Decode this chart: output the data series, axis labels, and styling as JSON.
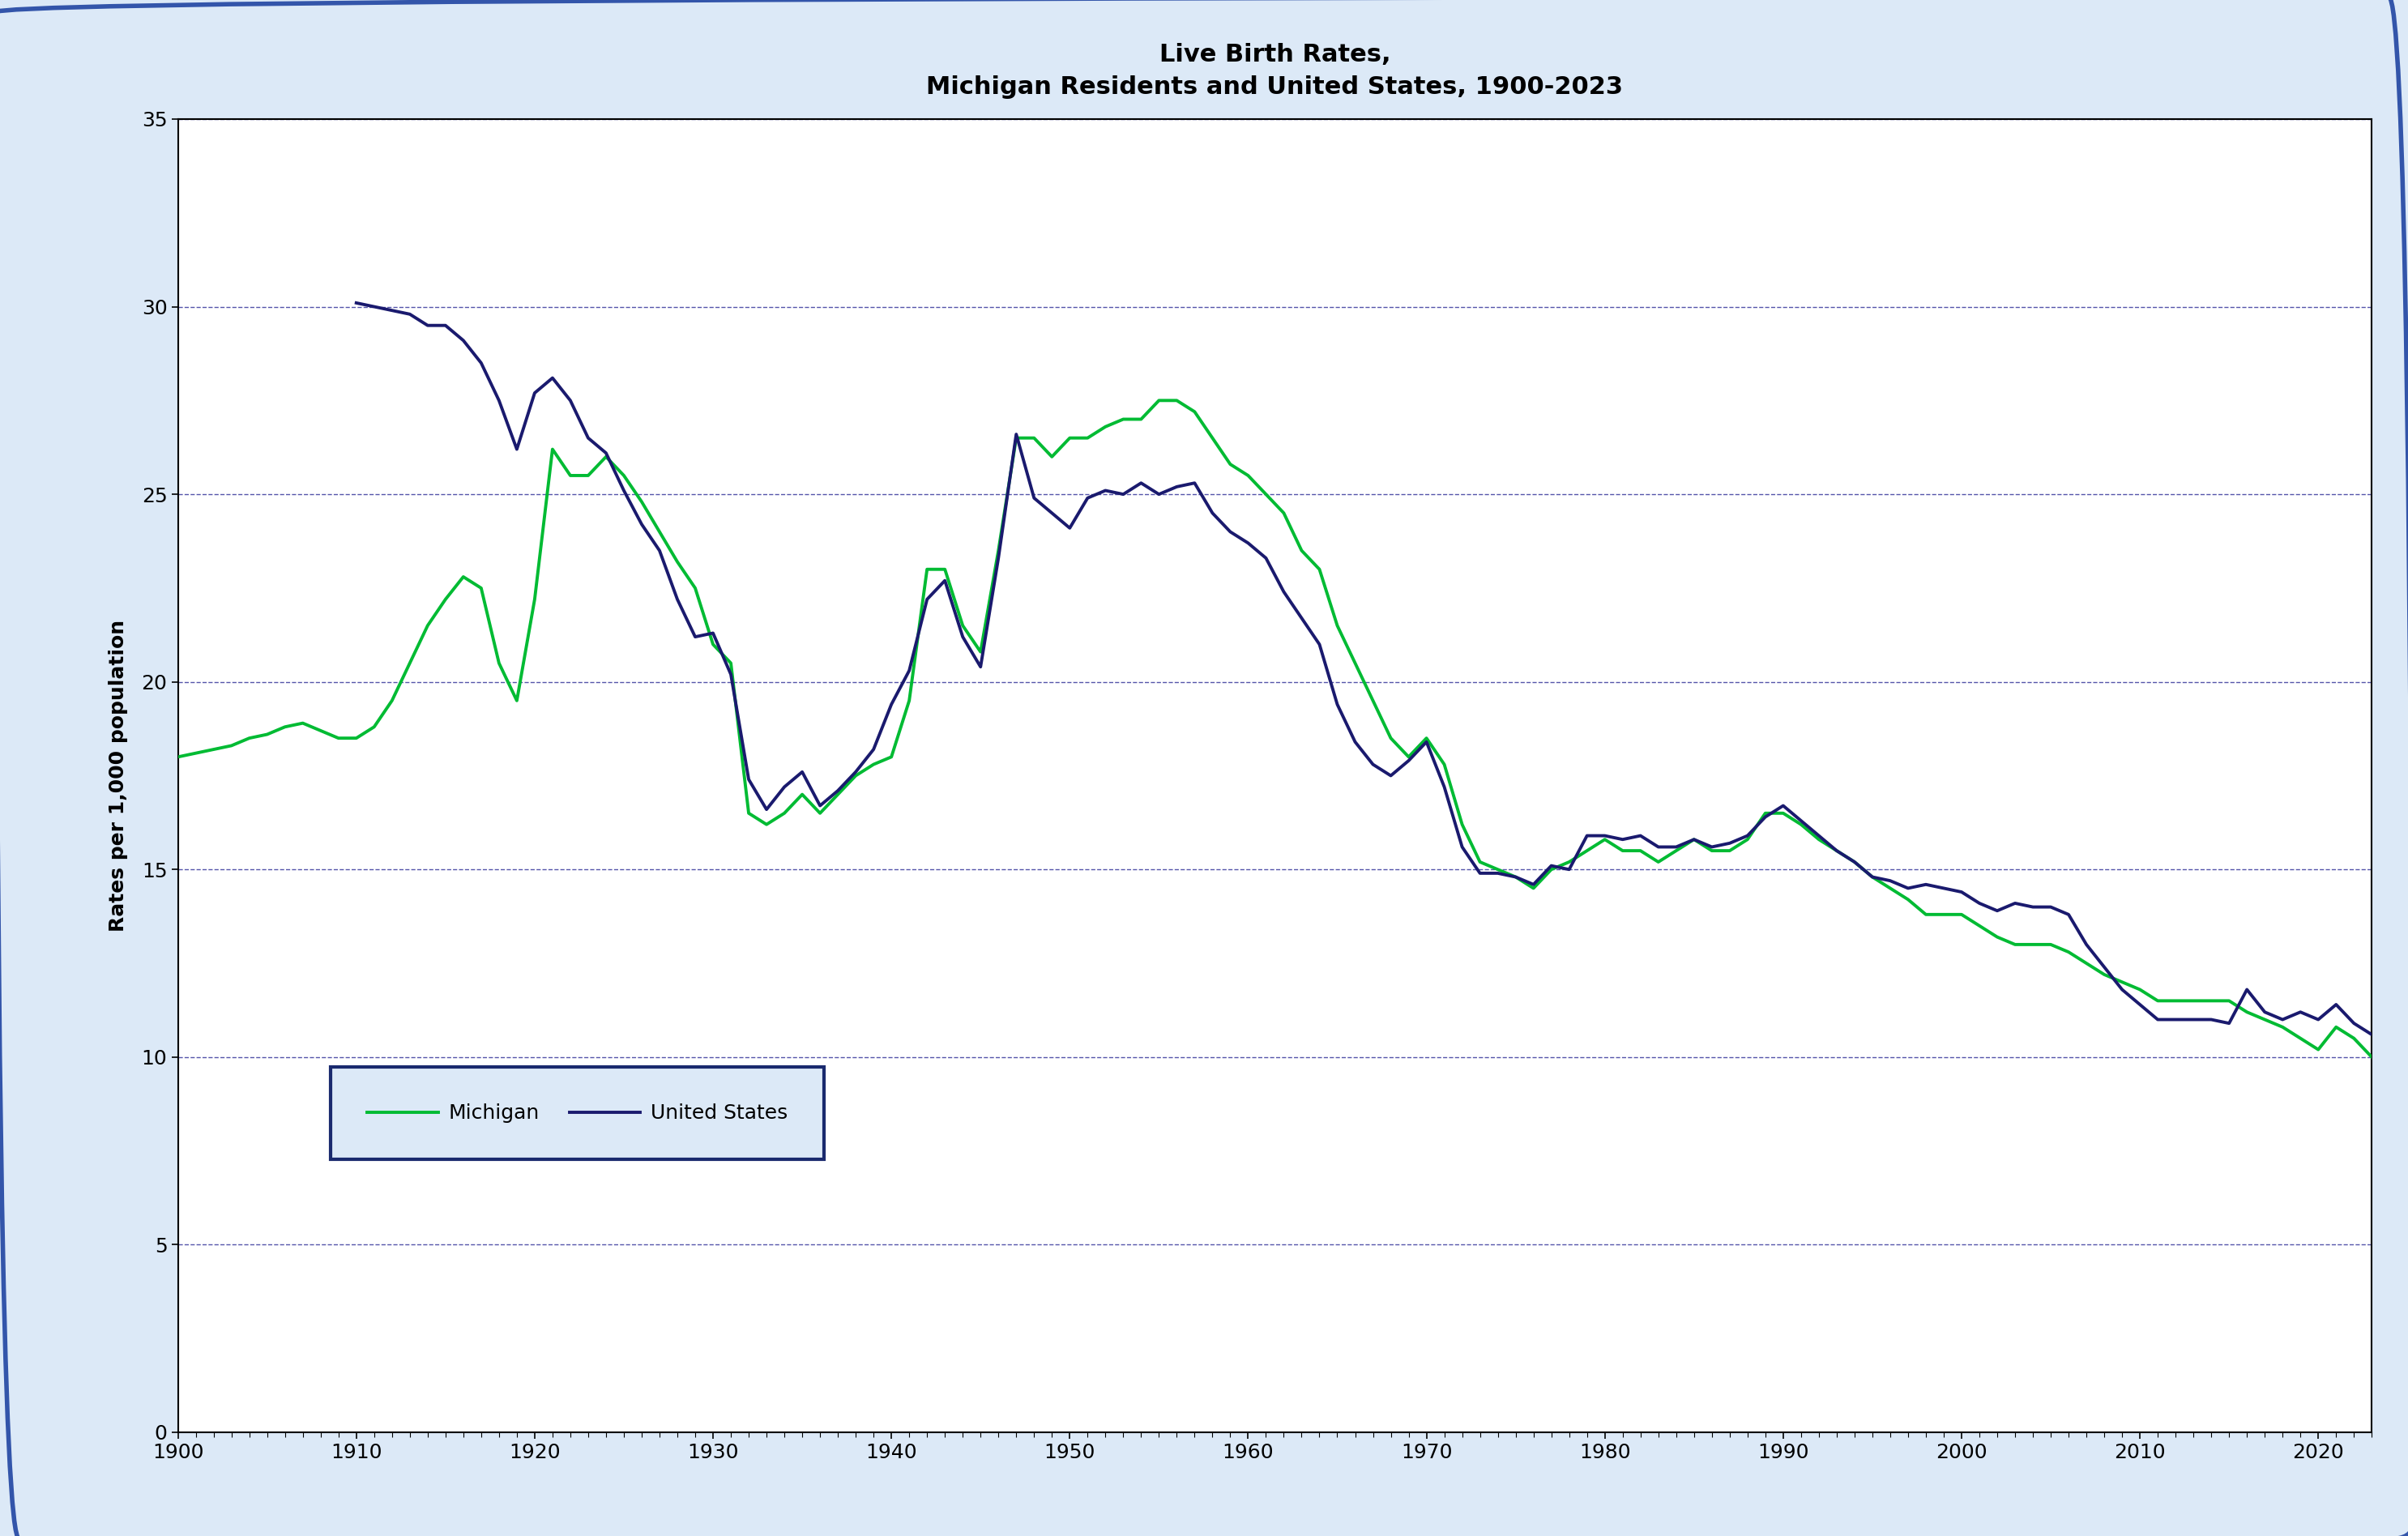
{
  "title": "Live Birth Rates,\nMichigan Residents and United States, 1900-2023",
  "ylabel": "Rates per 1,000 population",
  "xlabel": "",
  "fig_background_color": "#dce9f7",
  "plot_background_color": "#ffffff",
  "grid_color": "#5555aa",
  "michigan_color": "#00bb33",
  "us_color": "#1a1a6e",
  "ylim": [
    0,
    35
  ],
  "xlim": [
    1900,
    2023
  ],
  "yticks": [
    0,
    5,
    10,
    15,
    20,
    25,
    30,
    35
  ],
  "xticks": [
    1900,
    1910,
    1920,
    1930,
    1940,
    1950,
    1960,
    1970,
    1980,
    1990,
    2000,
    2010,
    2020
  ],
  "michigan_data": {
    "years": [
      1900,
      1901,
      1902,
      1903,
      1904,
      1905,
      1906,
      1907,
      1908,
      1909,
      1910,
      1911,
      1912,
      1913,
      1914,
      1915,
      1916,
      1917,
      1918,
      1919,
      1920,
      1921,
      1922,
      1923,
      1924,
      1925,
      1926,
      1927,
      1928,
      1929,
      1930,
      1931,
      1932,
      1933,
      1934,
      1935,
      1936,
      1937,
      1938,
      1939,
      1940,
      1941,
      1942,
      1943,
      1944,
      1945,
      1946,
      1947,
      1948,
      1949,
      1950,
      1951,
      1952,
      1953,
      1954,
      1955,
      1956,
      1957,
      1958,
      1959,
      1960,
      1961,
      1962,
      1963,
      1964,
      1965,
      1966,
      1967,
      1968,
      1969,
      1970,
      1971,
      1972,
      1973,
      1974,
      1975,
      1976,
      1977,
      1978,
      1979,
      1980,
      1981,
      1982,
      1983,
      1984,
      1985,
      1986,
      1987,
      1988,
      1989,
      1990,
      1991,
      1992,
      1993,
      1994,
      1995,
      1996,
      1997,
      1998,
      1999,
      2000,
      2001,
      2002,
      2003,
      2004,
      2005,
      2006,
      2007,
      2008,
      2009,
      2010,
      2011,
      2012,
      2013,
      2014,
      2015,
      2016,
      2017,
      2018,
      2019,
      2020,
      2021,
      2022,
      2023
    ],
    "rates": [
      18.0,
      18.1,
      18.2,
      18.3,
      18.5,
      18.6,
      18.8,
      18.9,
      18.7,
      18.5,
      18.5,
      18.8,
      19.5,
      20.5,
      21.5,
      22.2,
      22.8,
      22.5,
      20.5,
      19.5,
      22.2,
      26.2,
      25.5,
      25.5,
      26.0,
      25.5,
      24.8,
      24.0,
      23.2,
      22.5,
      21.0,
      20.5,
      16.5,
      16.2,
      16.5,
      17.0,
      16.5,
      17.0,
      17.5,
      17.8,
      18.0,
      19.5,
      23.0,
      23.0,
      21.5,
      20.8,
      23.5,
      26.5,
      26.5,
      26.0,
      26.5,
      26.5,
      26.8,
      27.0,
      27.0,
      27.5,
      27.5,
      27.2,
      26.5,
      25.8,
      25.5,
      25.0,
      24.5,
      23.5,
      23.0,
      21.5,
      20.5,
      19.5,
      18.5,
      18.0,
      18.5,
      17.8,
      16.2,
      15.2,
      15.0,
      14.8,
      14.5,
      15.0,
      15.2,
      15.5,
      15.8,
      15.5,
      15.5,
      15.2,
      15.5,
      15.8,
      15.5,
      15.5,
      15.8,
      16.5,
      16.5,
      16.2,
      15.8,
      15.5,
      15.2,
      14.8,
      14.5,
      14.2,
      13.8,
      13.8,
      13.8,
      13.5,
      13.2,
      13.0,
      13.0,
      13.0,
      12.8,
      12.5,
      12.2,
      12.0,
      11.8,
      11.5,
      11.5,
      11.5,
      11.5,
      11.5,
      11.2,
      11.0,
      10.8,
      10.5,
      10.2,
      10.8,
      10.5,
      10.0
    ]
  },
  "us_data": {
    "years": [
      1910,
      1911,
      1912,
      1913,
      1914,
      1915,
      1916,
      1917,
      1918,
      1919,
      1920,
      1921,
      1922,
      1923,
      1924,
      1925,
      1926,
      1927,
      1928,
      1929,
      1930,
      1931,
      1932,
      1933,
      1934,
      1935,
      1936,
      1937,
      1938,
      1939,
      1940,
      1941,
      1942,
      1943,
      1944,
      1945,
      1946,
      1947,
      1948,
      1949,
      1950,
      1951,
      1952,
      1953,
      1954,
      1955,
      1956,
      1957,
      1958,
      1959,
      1960,
      1961,
      1962,
      1963,
      1964,
      1965,
      1966,
      1967,
      1968,
      1969,
      1970,
      1971,
      1972,
      1973,
      1974,
      1975,
      1976,
      1977,
      1978,
      1979,
      1980,
      1981,
      1982,
      1983,
      1984,
      1985,
      1986,
      1987,
      1988,
      1989,
      1990,
      1991,
      1992,
      1993,
      1994,
      1995,
      1996,
      1997,
      1998,
      1999,
      2000,
      2001,
      2002,
      2003,
      2004,
      2005,
      2006,
      2007,
      2008,
      2009,
      2010,
      2011,
      2012,
      2013,
      2014,
      2015,
      2016,
      2017,
      2018,
      2019,
      2020,
      2021,
      2022,
      2023
    ],
    "rates": [
      30.1,
      30.0,
      29.9,
      29.8,
      29.5,
      29.5,
      29.1,
      28.5,
      27.5,
      26.2,
      27.7,
      28.1,
      27.5,
      26.5,
      26.1,
      25.1,
      24.2,
      23.5,
      22.2,
      21.2,
      21.3,
      20.2,
      17.4,
      16.6,
      17.2,
      17.6,
      16.7,
      17.1,
      17.6,
      18.2,
      19.4,
      20.3,
      22.2,
      22.7,
      21.2,
      20.4,
      23.3,
      26.6,
      24.9,
      24.5,
      24.1,
      24.9,
      25.1,
      25.0,
      25.3,
      25.0,
      25.2,
      25.3,
      24.5,
      24.0,
      23.7,
      23.3,
      22.4,
      21.7,
      21.0,
      19.4,
      18.4,
      17.8,
      17.5,
      17.9,
      18.4,
      17.2,
      15.6,
      14.9,
      14.9,
      14.8,
      14.6,
      15.1,
      15.0,
      15.9,
      15.9,
      15.8,
      15.9,
      15.6,
      15.6,
      15.8,
      15.6,
      15.7,
      15.9,
      16.4,
      16.7,
      16.3,
      15.9,
      15.5,
      15.2,
      14.8,
      14.7,
      14.5,
      14.6,
      14.5,
      14.4,
      14.1,
      13.9,
      14.1,
      14.0,
      14.0,
      13.8,
      13.0,
      12.4,
      11.8,
      11.4,
      11.0,
      11.0,
      11.0,
      11.0,
      10.9,
      11.8,
      11.2,
      11.0,
      11.2,
      11.0,
      11.4,
      10.9,
      10.6
    ]
  },
  "legend_michigan": "Michigan",
  "legend_us": "United States",
  "title_fontsize": 22,
  "axis_fontsize": 18,
  "tick_fontsize": 18,
  "legend_fontsize": 18,
  "line_width": 2.8,
  "outer_border_color": "#3355aa",
  "legend_bg": "#dce9f7",
  "legend_border": "#1a2a6e"
}
